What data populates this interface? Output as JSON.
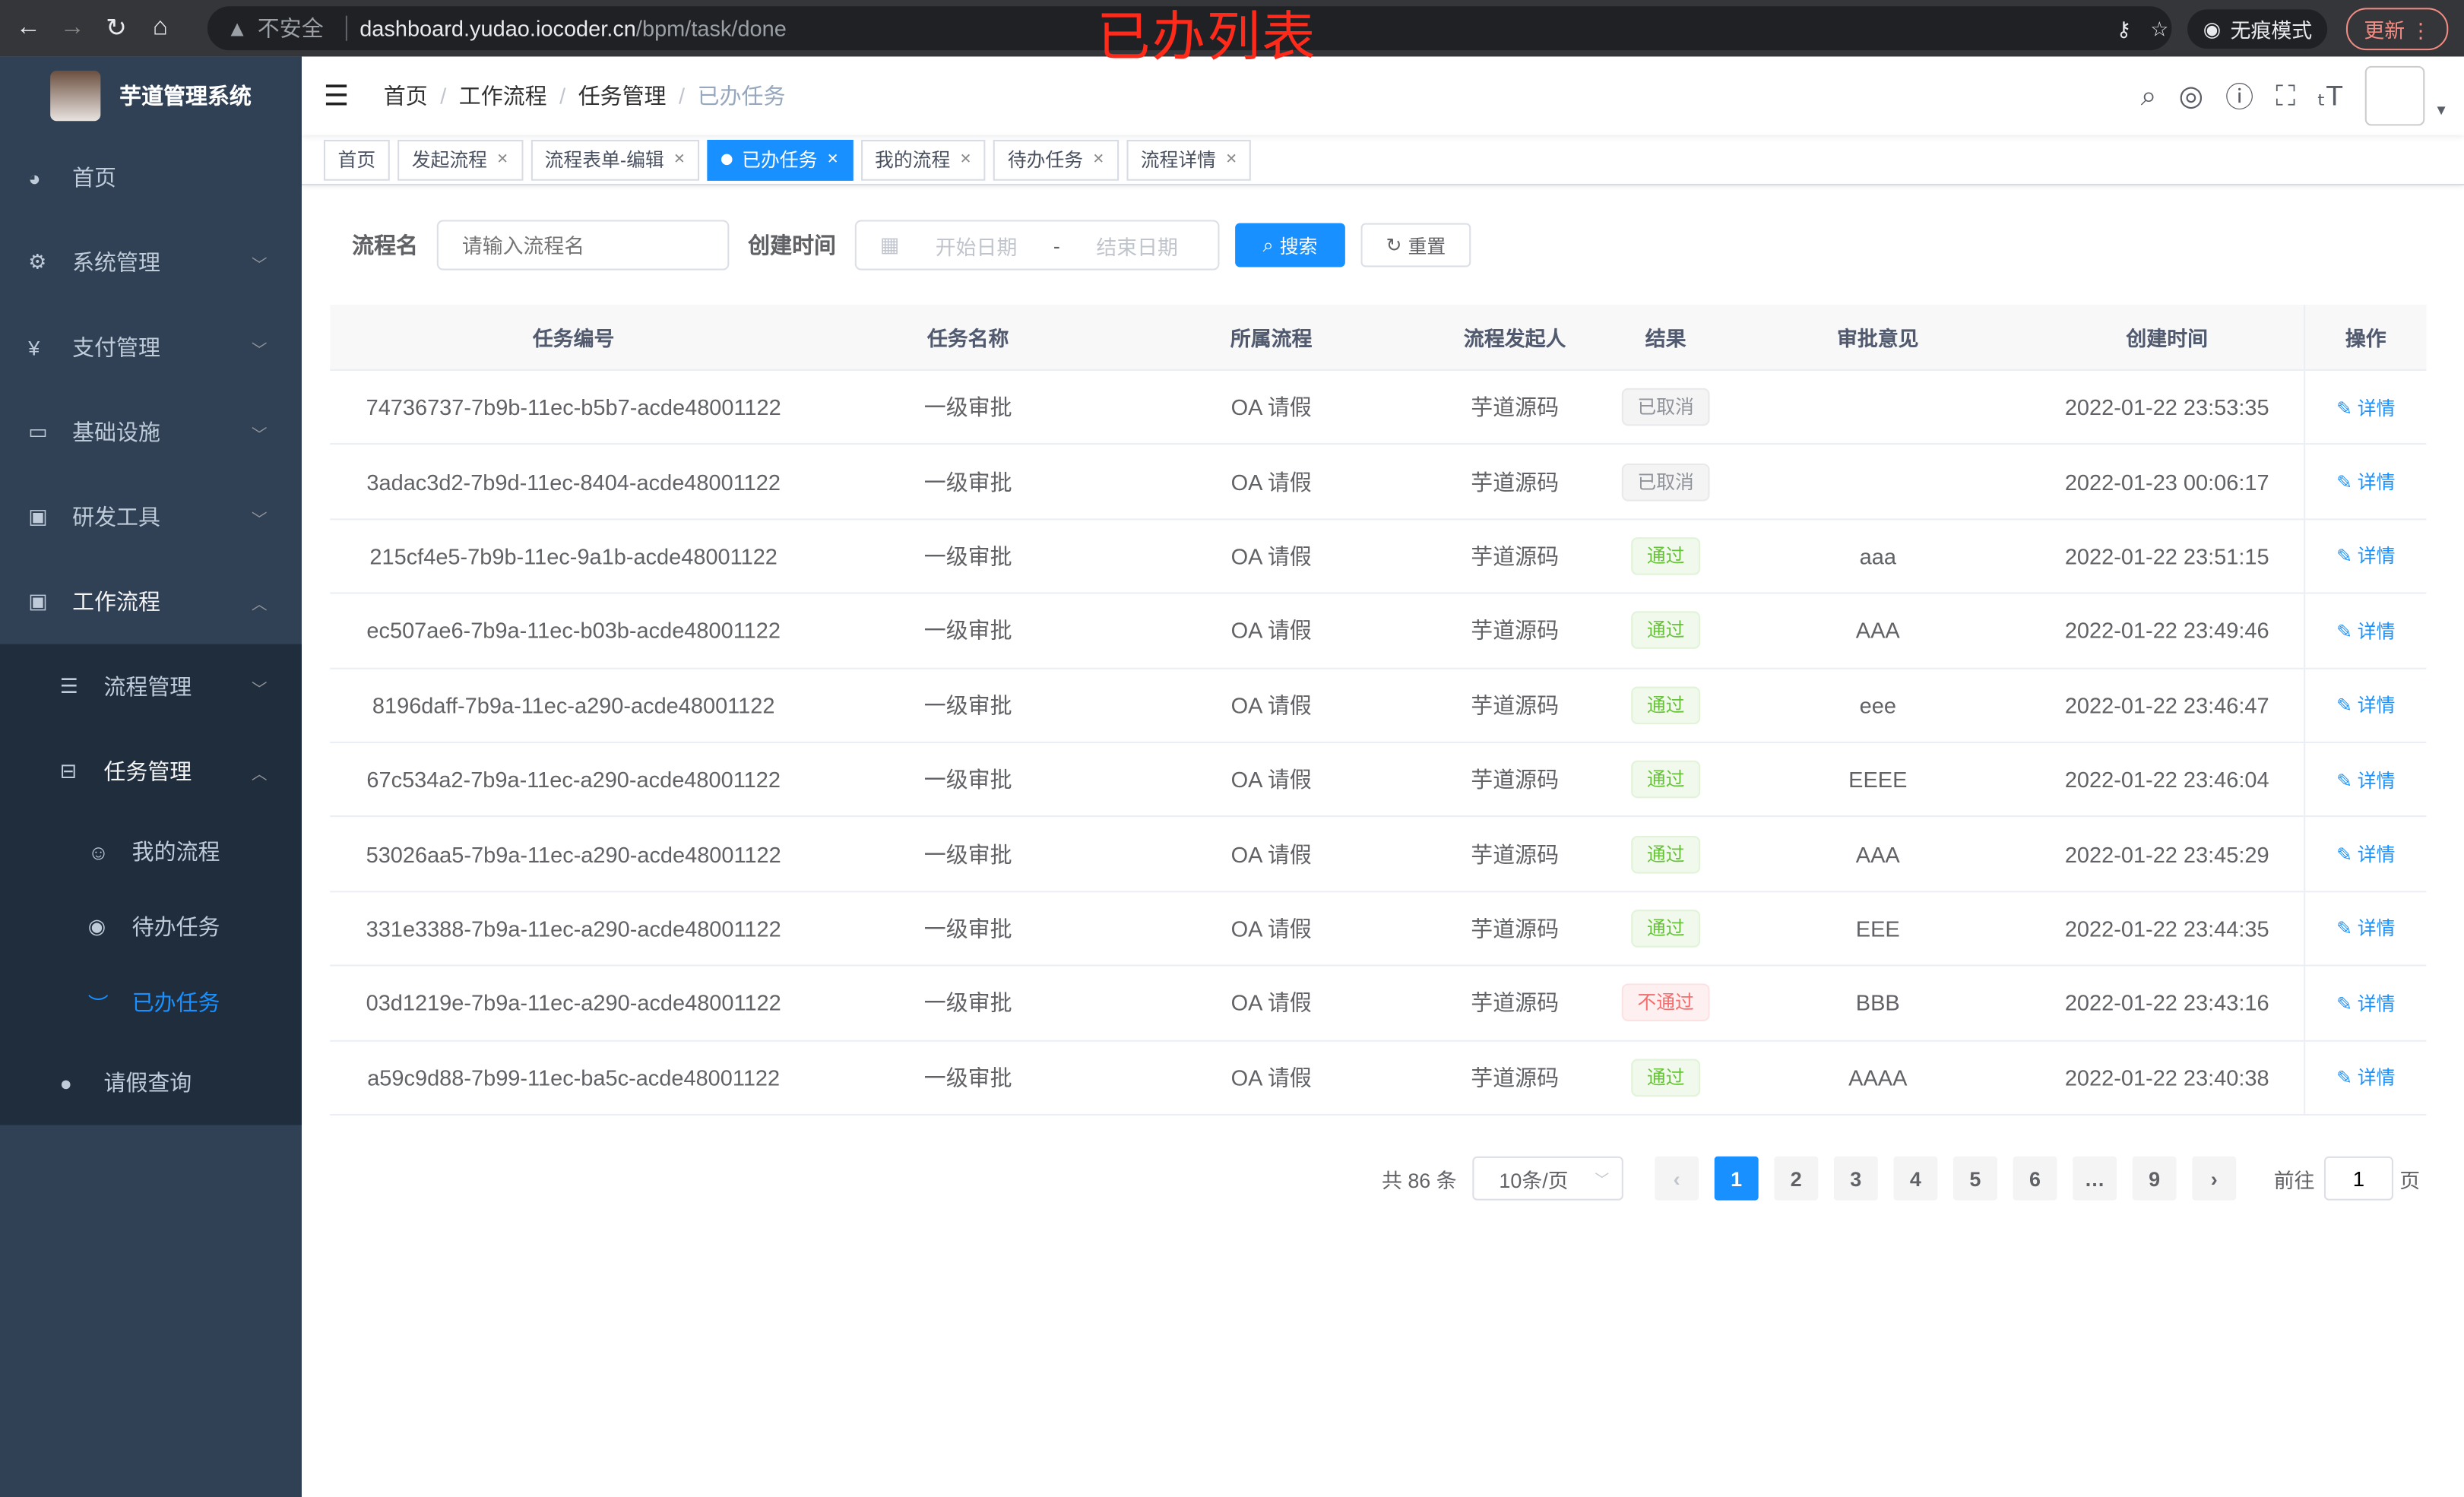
{
  "browser": {
    "security": "不安全",
    "host": "dashboard.yudao.iocoder.cn",
    "path": "/bpm/task/done",
    "incognito": "无痕模式",
    "update": "更新"
  },
  "annotation": "已办列表",
  "sidebar": {
    "title": "芋道管理系统",
    "items": [
      {
        "label": "首页",
        "icon": "dashboard-icon"
      },
      {
        "label": "系统管理",
        "icon": "gear-icon"
      },
      {
        "label": "支付管理",
        "icon": "yen-icon"
      },
      {
        "label": "基础设施",
        "icon": "monitor-icon"
      },
      {
        "label": "研发工具",
        "icon": "toolbox-icon"
      },
      {
        "label": "工作流程",
        "icon": "toolbox-icon"
      }
    ],
    "workflow_children": [
      {
        "label": "流程管理"
      },
      {
        "label": "任务管理"
      }
    ],
    "task_children": [
      {
        "label": "我的流程"
      },
      {
        "label": "待办任务"
      },
      {
        "label": "已办任务"
      }
    ],
    "leave": "请假查询"
  },
  "breadcrumb": [
    "首页",
    "工作流程",
    "任务管理",
    "已办任务"
  ],
  "tags": [
    {
      "label": "首页"
    },
    {
      "label": "发起流程"
    },
    {
      "label": "流程表单-编辑"
    },
    {
      "label": "已办任务"
    },
    {
      "label": "我的流程"
    },
    {
      "label": "待办任务"
    },
    {
      "label": "流程详情"
    }
  ],
  "search": {
    "name_label": "流程名",
    "name_placeholder": "请输入流程名",
    "time_label": "创建时间",
    "start_placeholder": "开始日期",
    "sep": "-",
    "end_placeholder": "结束日期",
    "search": "搜索",
    "reset": "重置"
  },
  "table": {
    "headers": [
      "任务编号",
      "任务名称",
      "所属流程",
      "流程发起人",
      "结果",
      "审批意见",
      "创建时间",
      "操作"
    ],
    "action": "详情",
    "rows": [
      [
        "74736737-7b9b-11ec-b5b7-acde48001122",
        "一级审批",
        "OA 请假",
        "芋道源码",
        "已取消",
        "",
        "2022-01-22 23:53:35"
      ],
      [
        "3adac3d2-7b9d-11ec-8404-acde48001122",
        "一级审批",
        "OA 请假",
        "芋道源码",
        "已取消",
        "",
        "2022-01-23 00:06:17"
      ],
      [
        "215cf4e5-7b9b-11ec-9a1b-acde48001122",
        "一级审批",
        "OA 请假",
        "芋道源码",
        "通过",
        "aaa",
        "2022-01-22 23:51:15"
      ],
      [
        "ec507ae6-7b9a-11ec-b03b-acde48001122",
        "一级审批",
        "OA 请假",
        "芋道源码",
        "通过",
        "AAA",
        "2022-01-22 23:49:46"
      ],
      [
        "8196daff-7b9a-11ec-a290-acde48001122",
        "一级审批",
        "OA 请假",
        "芋道源码",
        "通过",
        "eee",
        "2022-01-22 23:46:47"
      ],
      [
        "67c534a2-7b9a-11ec-a290-acde48001122",
        "一级审批",
        "OA 请假",
        "芋道源码",
        "通过",
        "EEEE",
        "2022-01-22 23:46:04"
      ],
      [
        "53026aa5-7b9a-11ec-a290-acde48001122",
        "一级审批",
        "OA 请假",
        "芋道源码",
        "通过",
        "AAA",
        "2022-01-22 23:45:29"
      ],
      [
        "331e3388-7b9a-11ec-a290-acde48001122",
        "一级审批",
        "OA 请假",
        "芋道源码",
        "通过",
        "EEE",
        "2022-01-22 23:44:35"
      ],
      [
        "03d1219e-7b9a-11ec-a290-acde48001122",
        "一级审批",
        "OA 请假",
        "芋道源码",
        "不通过",
        "BBB",
        "2022-01-22 23:43:16"
      ],
      [
        "a59c9d88-7b99-11ec-ba5c-acde48001122",
        "一级审批",
        "OA 请假",
        "芋道源码",
        "通过",
        "AAAA",
        "2022-01-22 23:40:38"
      ]
    ]
  },
  "pagination": {
    "total": "共 86 条",
    "page_size": "10条/页",
    "pages": [
      "1",
      "2",
      "3",
      "4",
      "5",
      "6",
      "…",
      "9"
    ],
    "current": "1",
    "goto_label": "前往",
    "goto_value": "1",
    "page_suffix": "页"
  }
}
